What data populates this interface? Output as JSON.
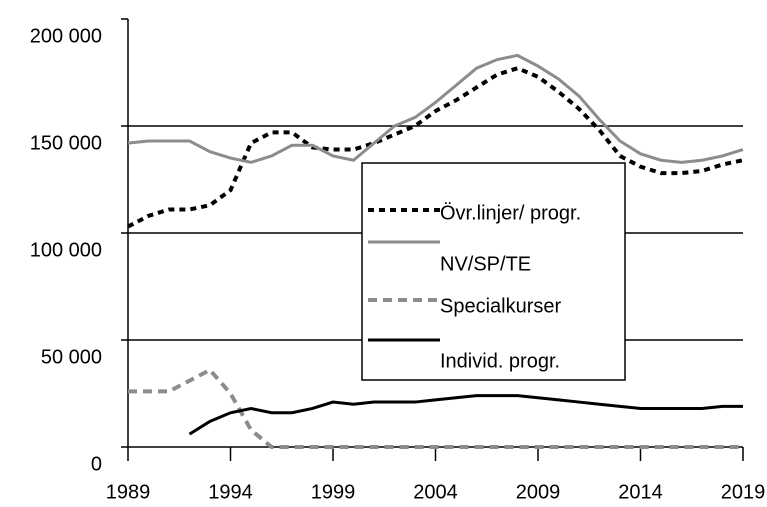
{
  "chart_data": {
    "type": "line",
    "xlim": [
      1989,
      2019
    ],
    "xticks": [
      1989,
      1994,
      1999,
      2004,
      2009,
      2014,
      2019
    ],
    "ylim": [
      0,
      200000
    ],
    "yticks": [
      {
        "value": 0,
        "label": "0"
      },
      {
        "value": 50000,
        "label": "50 000"
      },
      {
        "value": 100000,
        "label": "100 000"
      },
      {
        "value": 150000,
        "label": "150 000"
      },
      {
        "value": 200000,
        "label": "200 000"
      }
    ],
    "grid": true,
    "x": [
      1989,
      1990,
      1991,
      1992,
      1993,
      1994,
      1995,
      1996,
      1997,
      1998,
      1999,
      2000,
      2001,
      2002,
      2003,
      2004,
      2005,
      2006,
      2007,
      2008,
      2009,
      2010,
      2011,
      2012,
      2013,
      2014,
      2015,
      2016,
      2017,
      2018,
      2019
    ],
    "series": [
      {
        "name": "Övr.linjer/ progr.",
        "color": "#000000",
        "style": "dotted",
        "values": [
          103000,
          108000,
          111000,
          111000,
          113000,
          120000,
          142000,
          147000,
          147000,
          140000,
          139000,
          139000,
          142000,
          146000,
          150000,
          157000,
          162000,
          168000,
          174000,
          177000,
          173000,
          166000,
          158000,
          148000,
          136000,
          131000,
          128000,
          128000,
          129000,
          132000,
          134000
        ]
      },
      {
        "name": "NV/SP/TE",
        "color": "#8c8c8c",
        "style": "solid",
        "values": [
          142000,
          143000,
          143000,
          143000,
          138000,
          135000,
          133000,
          136000,
          141000,
          141000,
          136000,
          134000,
          142000,
          150000,
          154000,
          161000,
          169000,
          177000,
          181000,
          183000,
          178000,
          172000,
          164000,
          153000,
          143000,
          137000,
          134000,
          133000,
          134000,
          136000,
          139000
        ]
      },
      {
        "name": "Specialkurser",
        "color": "#8c8c8c",
        "style": "dashed",
        "values": [
          26000,
          26000,
          26000,
          31000,
          36000,
          25000,
          8000,
          0,
          0,
          0,
          0,
          0,
          0,
          0,
          0,
          0,
          0,
          0,
          0,
          0,
          0,
          0,
          0,
          0,
          0,
          0,
          0,
          0,
          0,
          0,
          0
        ]
      },
      {
        "name": "Individ. progr.",
        "color": "#000000",
        "style": "solid",
        "values": [
          null,
          null,
          null,
          6000,
          12000,
          16000,
          18000,
          16000,
          16000,
          18000,
          21000,
          20000,
          21000,
          21000,
          21000,
          22000,
          23000,
          24000,
          24000,
          24000,
          23000,
          22000,
          21000,
          20000,
          19000,
          18000,
          18000,
          18000,
          18000,
          19000,
          19000
        ]
      }
    ]
  }
}
